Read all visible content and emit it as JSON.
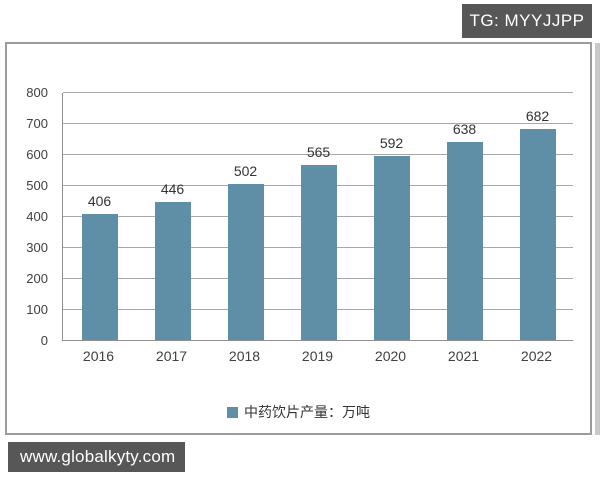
{
  "watermarks": {
    "telegram_badge": "TG: MYYJJPP",
    "site_badge": "www.globalkyty.com"
  },
  "colors": {
    "badge_bg": "#575757",
    "badge_text": "#ffffff",
    "bar": "#5f8fa6",
    "gridline": "#a8a8a8",
    "axis_text": "#404040",
    "value_text": "#333333"
  },
  "chart_data": {
    "type": "bar",
    "title": "",
    "xlabel": "",
    "ylabel": "",
    "categories": [
      "2016",
      "2017",
      "2018",
      "2019",
      "2020",
      "2021",
      "2022"
    ],
    "values": [
      406,
      446,
      502,
      565,
      592,
      638,
      682
    ],
    "ylim": [
      0,
      800
    ],
    "yticks": [
      0,
      100,
      200,
      300,
      400,
      500,
      600,
      700,
      800
    ],
    "grid": true,
    "legend": {
      "label": "中药饮片产量：万吨",
      "position": "bottom"
    }
  }
}
